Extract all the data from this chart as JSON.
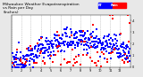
{
  "title": "Milwaukee Weather Evapotranspiration\nvs Rain per Day\n(Inches)",
  "title_fontsize": 3.2,
  "background_color": "#e8e8e8",
  "plot_bg_color": "#ffffff",
  "ylim": [
    0,
    0.45
  ],
  "xlim": [
    0,
    365
  ],
  "legend_blue_label": "ET",
  "legend_red_label": "Rain",
  "grid_color": "#aaaaaa",
  "et_color": "#0000ff",
  "rain_color": "#ff0000",
  "black_color": "#000000",
  "ytick_labels": [
    "0",
    ".1",
    ".2",
    ".3",
    ".4"
  ],
  "ytick_vals": [
    0,
    0.1,
    0.2,
    0.3,
    0.4
  ],
  "month_start_days": [
    0,
    31,
    59,
    90,
    120,
    151,
    181,
    212,
    243,
    273,
    304,
    334
  ],
  "month_labels": [
    "1",
    "2",
    "3",
    "4",
    "5",
    "6",
    "7",
    "8",
    "9",
    "10",
    "11",
    "12"
  ]
}
